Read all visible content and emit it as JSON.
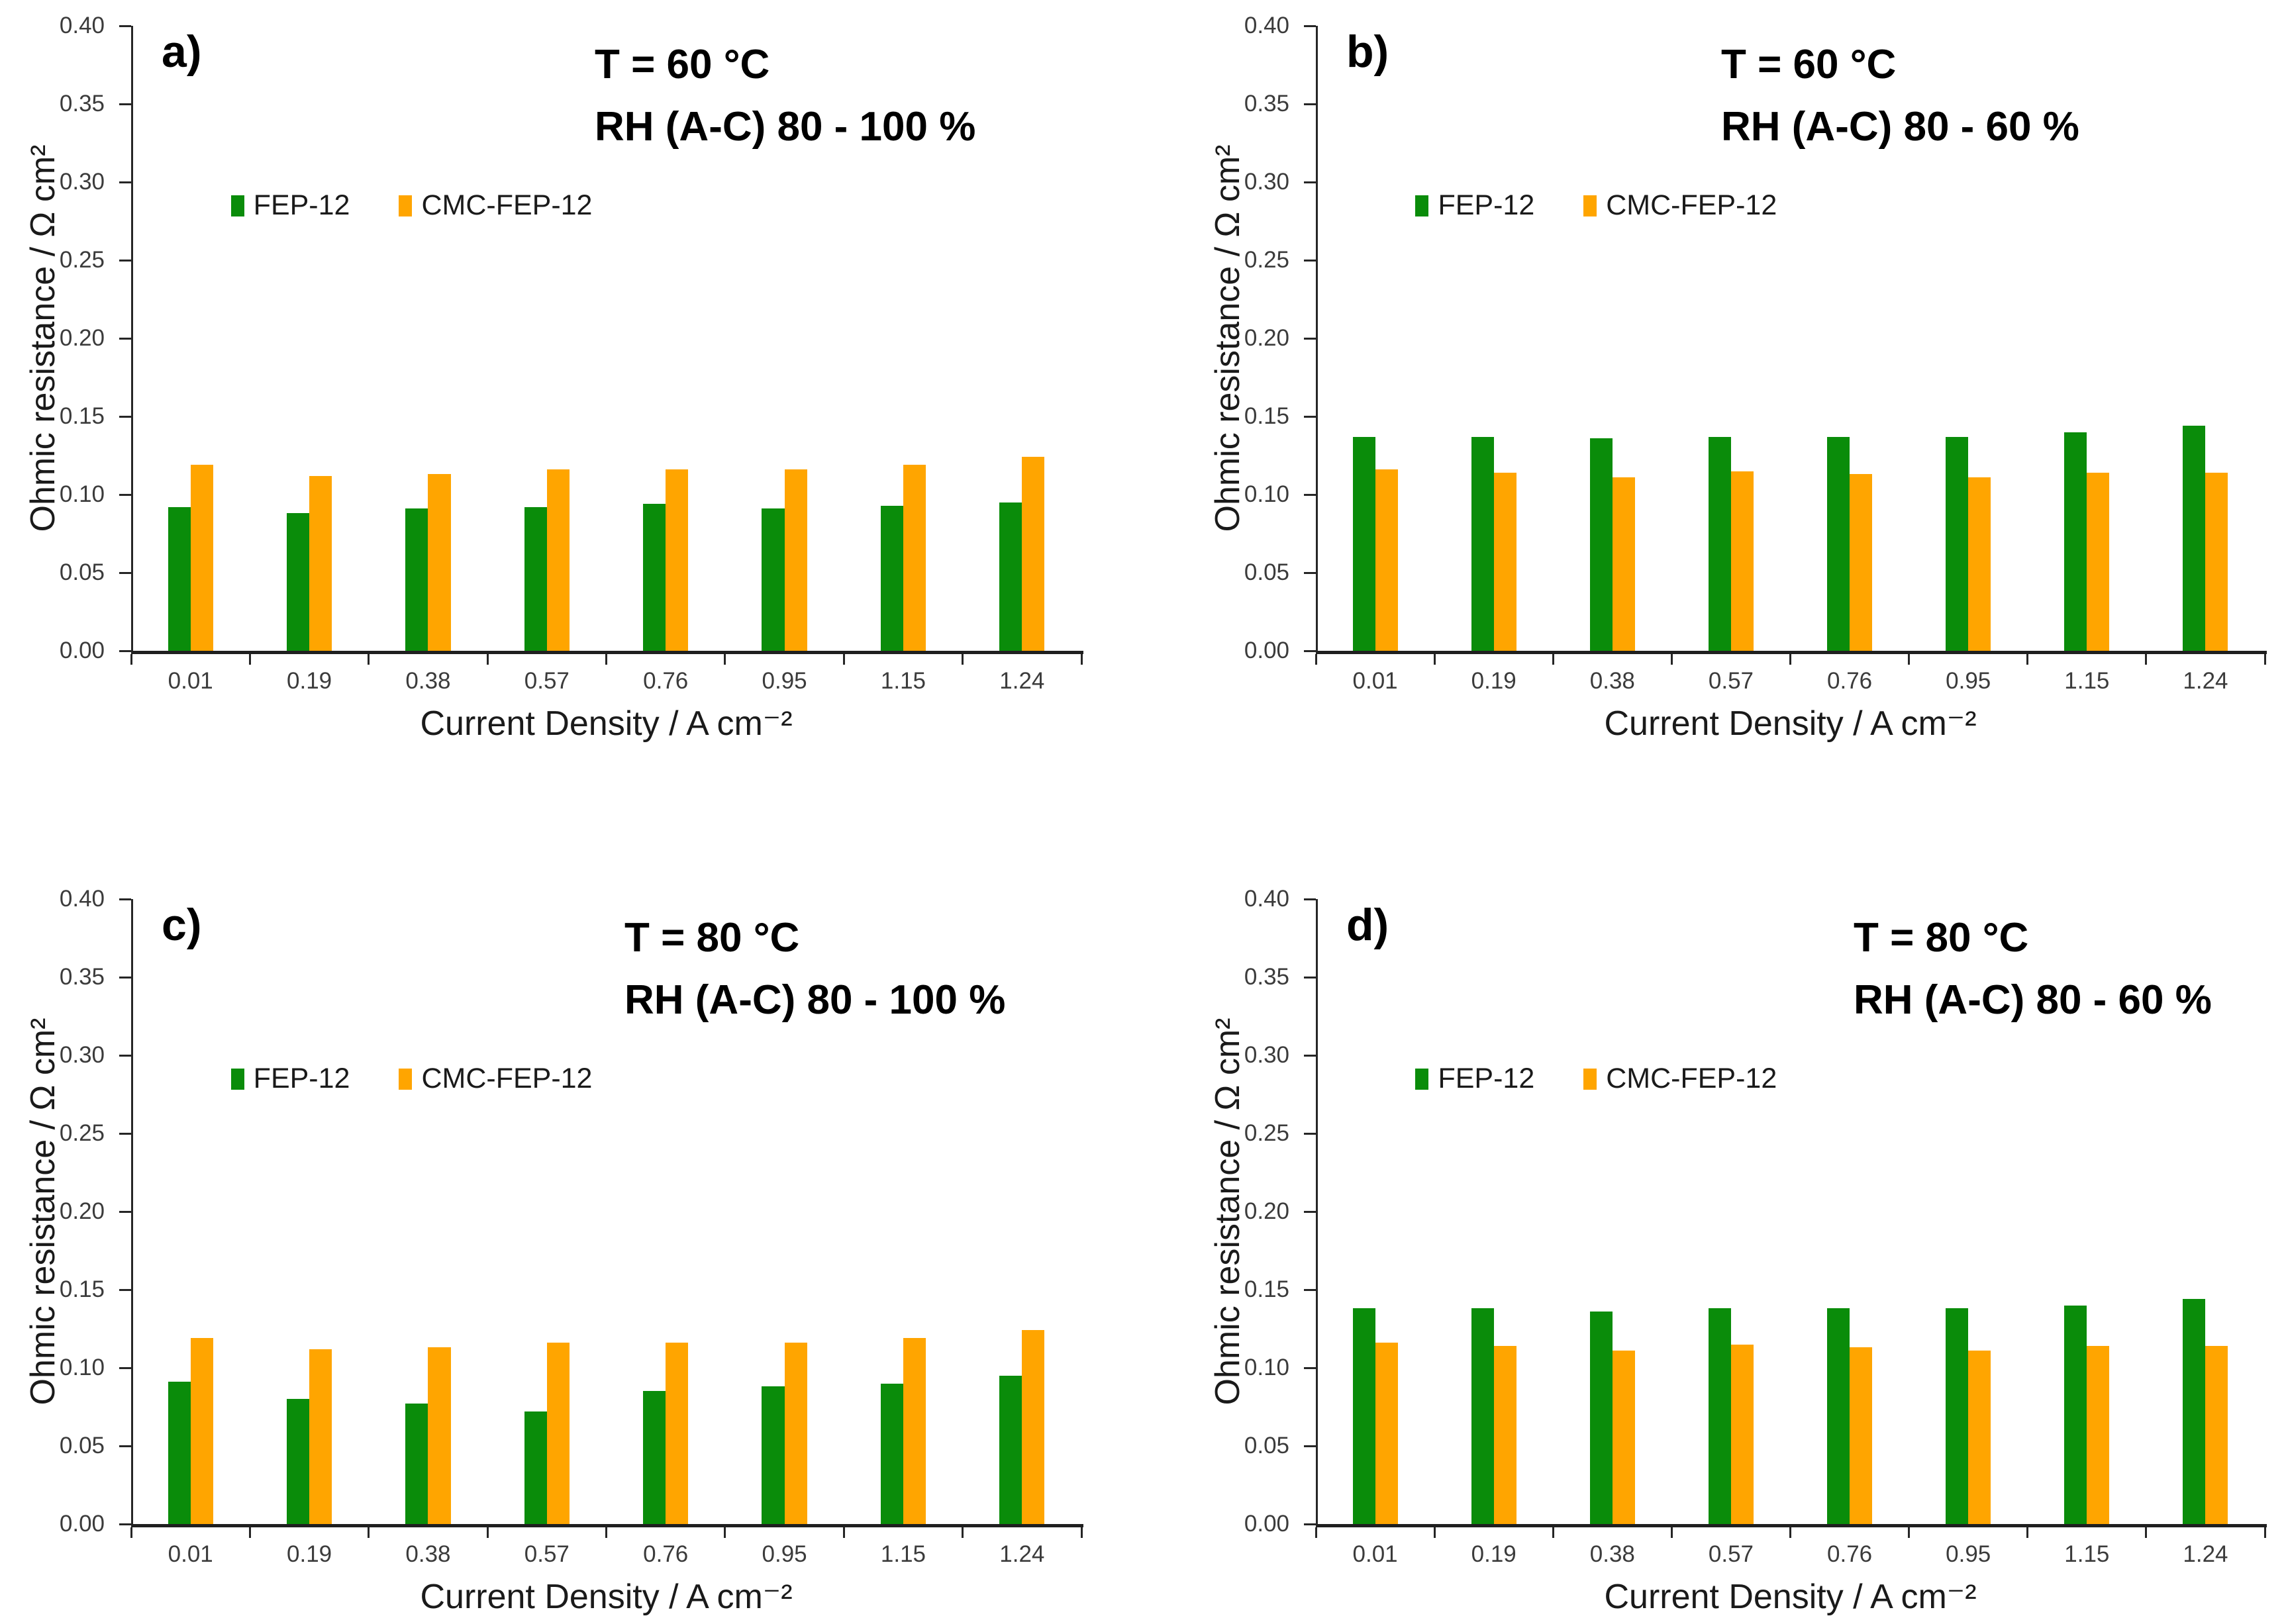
{
  "figure": {
    "background": "#ffffff",
    "description_visible_text_only": true
  },
  "shared": {
    "x_axis_title": "Current Density / A cm⁻²",
    "y_axis_title": "Ohmic resistance / Ω cm²",
    "y_axis": {
      "min": 0.0,
      "max": 0.4,
      "tick_step": 0.05,
      "tick_labels": [
        "0.00",
        "0.05",
        "0.10",
        "0.15",
        "0.20",
        "0.25",
        "0.30",
        "0.35",
        "0.40"
      ],
      "gridlines": false
    },
    "categories": [
      "0.01",
      "0.19",
      "0.38",
      "0.57",
      "0.76",
      "0.95",
      "1.15",
      "1.24"
    ],
    "colors": {
      "fep12_green": "#0a8c0a",
      "cmc_fep12_orange": "#ffa500",
      "axis": "#262626",
      "tick_text": "#3b3b3b"
    },
    "legend_position": "inside-upper-left"
  },
  "chart_data": [
    {
      "type": "bar",
      "panel_label": "a)",
      "title_line1": "T = 60 °C",
      "title_line2": "RH (A-C) 80 - 100 %",
      "xlabel": "Current Density / A cm⁻²",
      "ylabel": "Ohmic resistance / Ω cm²",
      "ylim": [
        0.0,
        0.4
      ],
      "categories": [
        "0.01",
        "0.19",
        "0.38",
        "0.57",
        "0.76",
        "0.95",
        "1.15",
        "1.24"
      ],
      "series": [
        {
          "name": "FEP-12",
          "color": "#0a8c0a",
          "values": [
            0.092,
            0.088,
            0.091,
            0.092,
            0.094,
            0.091,
            0.093,
            0.095
          ]
        },
        {
          "name": "CMC-FEP-12",
          "color": "#ffa500",
          "values": [
            0.119,
            0.112,
            0.113,
            0.116,
            0.116,
            0.116,
            0.119,
            0.124
          ]
        }
      ]
    },
    {
      "type": "bar",
      "panel_label": "b)",
      "title_line1": "T = 60 °C",
      "title_line2": "RH (A-C) 80 - 60 %",
      "xlabel": "Current Density / A cm⁻²",
      "ylabel": "Ohmic resistance / Ω cm²",
      "ylim": [
        0.0,
        0.4
      ],
      "categories": [
        "0.01",
        "0.19",
        "0.38",
        "0.57",
        "0.76",
        "0.95",
        "1.15",
        "1.24"
      ],
      "series": [
        {
          "name": "FEP-12",
          "color": "#0a8c0a",
          "values": [
            0.137,
            0.137,
            0.136,
            0.137,
            0.137,
            0.137,
            0.14,
            0.144
          ]
        },
        {
          "name": "CMC-FEP-12",
          "color": "#ffa500",
          "values": [
            0.116,
            0.114,
            0.111,
            0.115,
            0.113,
            0.111,
            0.114,
            0.114
          ]
        }
      ]
    },
    {
      "type": "bar",
      "panel_label": "c)",
      "title_line1": "T = 80 °C",
      "title_line2": "RH (A-C) 80 - 100 %",
      "xlabel": "Current Density / A cm⁻²",
      "ylabel": "Ohmic resistance / Ω cm²",
      "ylim": [
        0.0,
        0.4
      ],
      "categories": [
        "0.01",
        "0.19",
        "0.38",
        "0.57",
        "0.76",
        "0.95",
        "1.15",
        "1.24"
      ],
      "series": [
        {
          "name": "FEP-12",
          "color": "#0a8c0a",
          "values": [
            0.091,
            0.08,
            0.077,
            0.072,
            0.085,
            0.088,
            0.09,
            0.095
          ]
        },
        {
          "name": "CMC-FEP-12",
          "color": "#ffa500",
          "values": [
            0.119,
            0.112,
            0.113,
            0.116,
            0.116,
            0.116,
            0.119,
            0.124
          ]
        }
      ]
    },
    {
      "type": "bar",
      "panel_label": "d)",
      "title_line1": "T = 80 °C",
      "title_line2": "RH (A-C) 80 - 60 %",
      "xlabel": "Current Density / A cm⁻²",
      "ylabel": "Ohmic resistance / Ω cm²",
      "ylim": [
        0.0,
        0.4
      ],
      "categories": [
        "0.01",
        "0.19",
        "0.38",
        "0.57",
        "0.76",
        "0.95",
        "1.15",
        "1.24"
      ],
      "series": [
        {
          "name": "FEP-12",
          "color": "#0a8c0a",
          "values": [
            0.138,
            0.138,
            0.136,
            0.138,
            0.138,
            0.138,
            0.14,
            0.144
          ]
        },
        {
          "name": "CMC-FEP-12",
          "color": "#ffa500",
          "values": [
            0.116,
            0.114,
            0.111,
            0.115,
            0.113,
            0.111,
            0.114,
            0.114
          ]
        }
      ]
    }
  ]
}
